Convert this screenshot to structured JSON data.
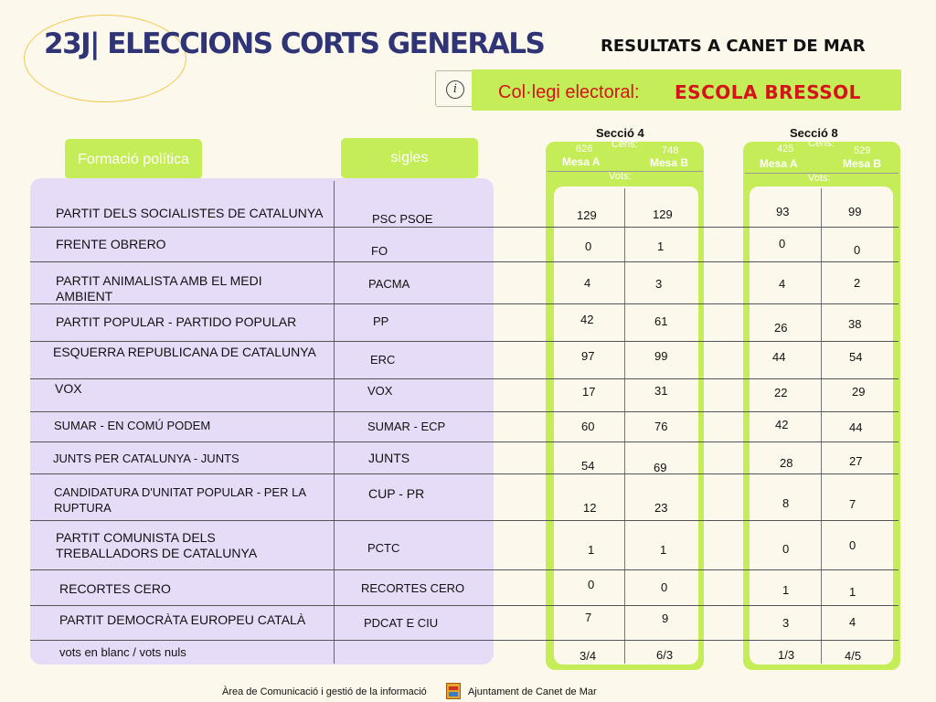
{
  "header": {
    "title": "23J| ELECCIONS CORTS GENERALS",
    "subtitle": "RESULTATS A CANET DE MAR",
    "info_icon": "info-icon",
    "school_label": "Col·legi electoral:",
    "school_name": "ESCOLA BRESSOL"
  },
  "columns": {
    "party": "Formació política",
    "acronym": "sigles"
  },
  "sections": [
    {
      "title": "Secció 4",
      "cens_label": "Cens:",
      "votes_label": "Vots:",
      "mesas": [
        {
          "name": "Mesa A",
          "cens": "626"
        },
        {
          "name": "Mesa B",
          "cens": "748"
        }
      ]
    },
    {
      "title": "Secció 8",
      "cens_label": "Cens:",
      "votes_label": "Vots:",
      "mesas": [
        {
          "name": "Mesa A",
          "cens": "425"
        },
        {
          "name": "Mesa B",
          "cens": "529"
        }
      ]
    }
  ],
  "rows": [
    {
      "party": "PARTIT DELS SOCIALISTES DE CATALUNYA",
      "acronym": "PSC PSOE",
      "s4a": "129",
      "s4b": "129",
      "s8a": "93",
      "s8b": "99"
    },
    {
      "party": "FRENTE OBRERO",
      "acronym": "FO",
      "s4a": "0",
      "s4b": "1",
      "s8a": "0",
      "s8b": "0"
    },
    {
      "party": "PARTIT ANIMALISTA AMB EL MEDI AMBIENT",
      "acronym": "PACMA",
      "s4a": "4",
      "s4b": "3",
      "s8a": "4",
      "s8b": "2"
    },
    {
      "party": "PARTIT POPULAR - PARTIDO POPULAR",
      "acronym": "PP",
      "s4a": "42",
      "s4b": "61",
      "s8a": "26",
      "s8b": "38"
    },
    {
      "party": "ESQUERRA REPUBLICANA DE CATALUNYA",
      "acronym": "ERC",
      "s4a": "97",
      "s4b": "99",
      "s8a": "44",
      "s8b": "54"
    },
    {
      "party": "VOX",
      "acronym": "VOX",
      "s4a": "17",
      "s4b": "31",
      "s8a": "22",
      "s8b": "29"
    },
    {
      "party": "SUMAR - EN COMÚ PODEM",
      "acronym": "SUMAR - ECP",
      "s4a": "60",
      "s4b": "76",
      "s8a": "42",
      "s8b": "44"
    },
    {
      "party": "JUNTS PER CATALUNYA - JUNTS",
      "acronym": "JUNTS",
      "s4a": "54",
      "s4b": "69",
      "s8a": "28",
      "s8b": "27"
    },
    {
      "party": "CANDIDATURA D'UNITAT POPULAR - PER LA RUPTURA",
      "acronym": "CUP - PR",
      "s4a": "12",
      "s4b": "23",
      "s8a": "8",
      "s8b": "7"
    },
    {
      "party": "PARTIT COMUNISTA DELS TREBALLADORS DE CATALUNYA",
      "acronym": "PCTC",
      "s4a": "1",
      "s4b": "1",
      "s8a": "0",
      "s8b": "0"
    },
    {
      "party": "RECORTES CERO",
      "acronym": "RECORTES CERO",
      "s4a": "0",
      "s4b": "0",
      "s8a": "1",
      "s8b": "1"
    },
    {
      "party": "PARTIT DEMOCRÀTA EUROPEU CATALÀ",
      "acronym": "PDCAT E CIU",
      "s4a": "7",
      "s4b": "9",
      "s8a": "3",
      "s8b": "4"
    },
    {
      "party": "vots en blanc  / vots nuls",
      "acronym": "",
      "s4a": "3/4",
      "s4b": "6/3",
      "s8a": "1/3",
      "s8b": "4/5"
    }
  ],
  "footer": {
    "left": "Àrea de Comunicació i gestió de la informació",
    "right": "Ajuntament de Canet de Mar",
    "logo_icon": "municipal-coat-of-arms-icon"
  },
  "colors": {
    "accent_green": "#c4ed58",
    "lavender": "#e6dcf8",
    "title_navy": "#2e3476",
    "school_red": "#d3141b",
    "background": "#fdf8ec"
  }
}
